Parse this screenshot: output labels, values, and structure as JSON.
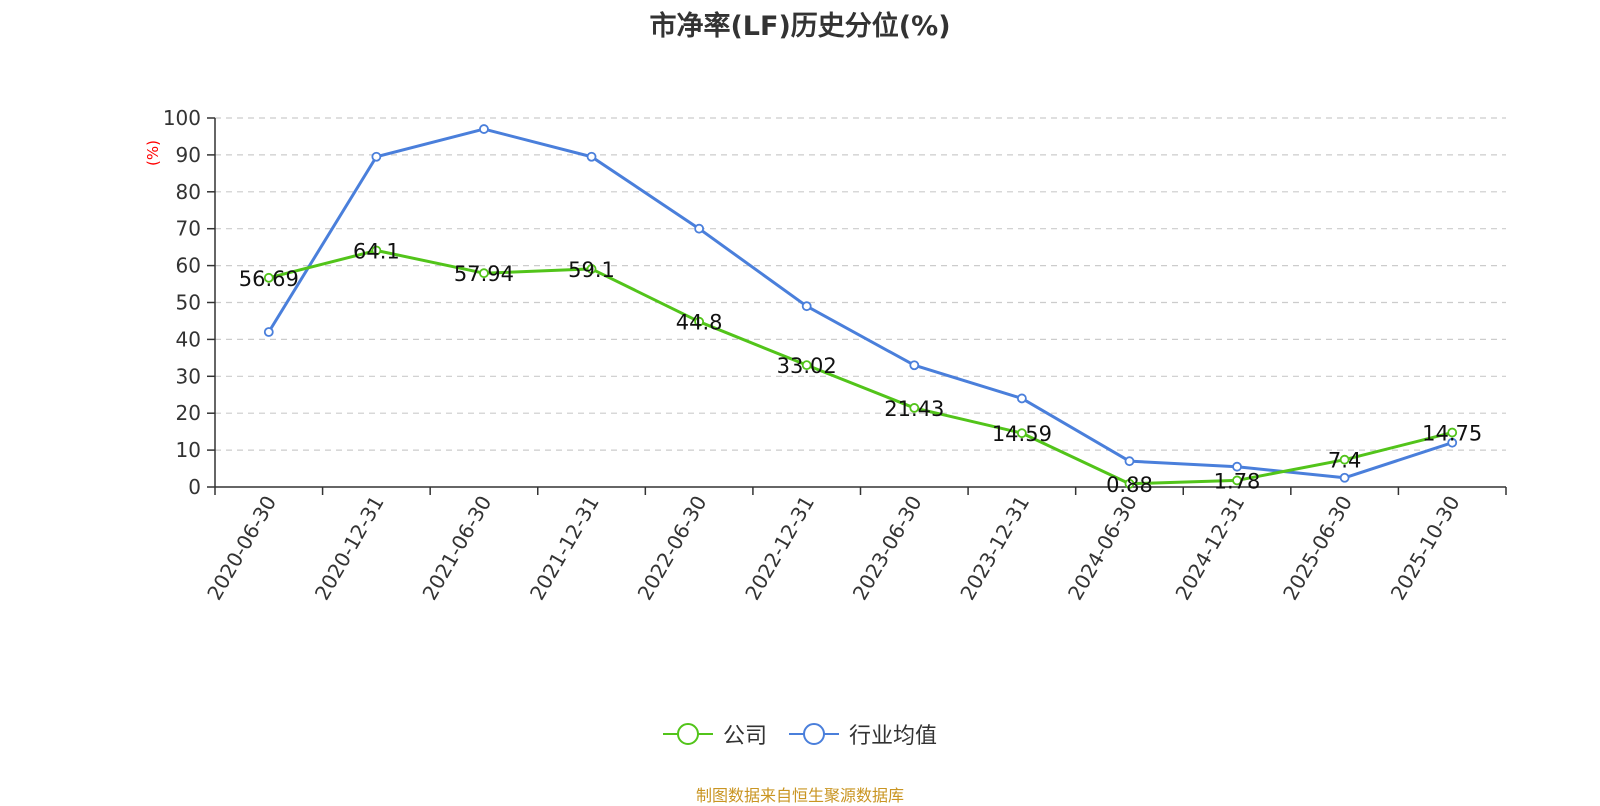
{
  "chart_title": "市净率(LF)历史分位(%)",
  "source_note": "制图数据来自恒生聚源数据库",
  "chart_data": {
    "type": "line",
    "title": "市净率(LF)历史分位(%)",
    "ylabel": "(%)",
    "xlabel": "",
    "ylim": [
      0,
      100
    ],
    "yticks": [
      0,
      10,
      20,
      30,
      40,
      50,
      60,
      70,
      80,
      90,
      100
    ],
    "grid": true,
    "legend_position": "bottom",
    "categories": [
      "2020-06-30",
      "2020-12-31",
      "2021-06-30",
      "2021-12-31",
      "2022-06-30",
      "2022-12-31",
      "2023-06-30",
      "2023-12-31",
      "2024-06-30",
      "2024-12-31",
      "2025-06-30",
      "2025-10-30"
    ],
    "series": [
      {
        "name": "公司",
        "color": "#52c41a",
        "show_labels": true,
        "values": [
          56.69,
          64.1,
          57.94,
          59.1,
          44.8,
          33.02,
          21.43,
          14.59,
          0.88,
          1.78,
          7.4,
          14.75
        ]
      },
      {
        "name": "行业均值",
        "color": "#4a7fdb",
        "show_labels": false,
        "values": [
          42,
          89.5,
          97,
          89.5,
          70,
          49,
          33,
          24,
          7,
          5.5,
          2.5,
          12
        ]
      }
    ]
  }
}
